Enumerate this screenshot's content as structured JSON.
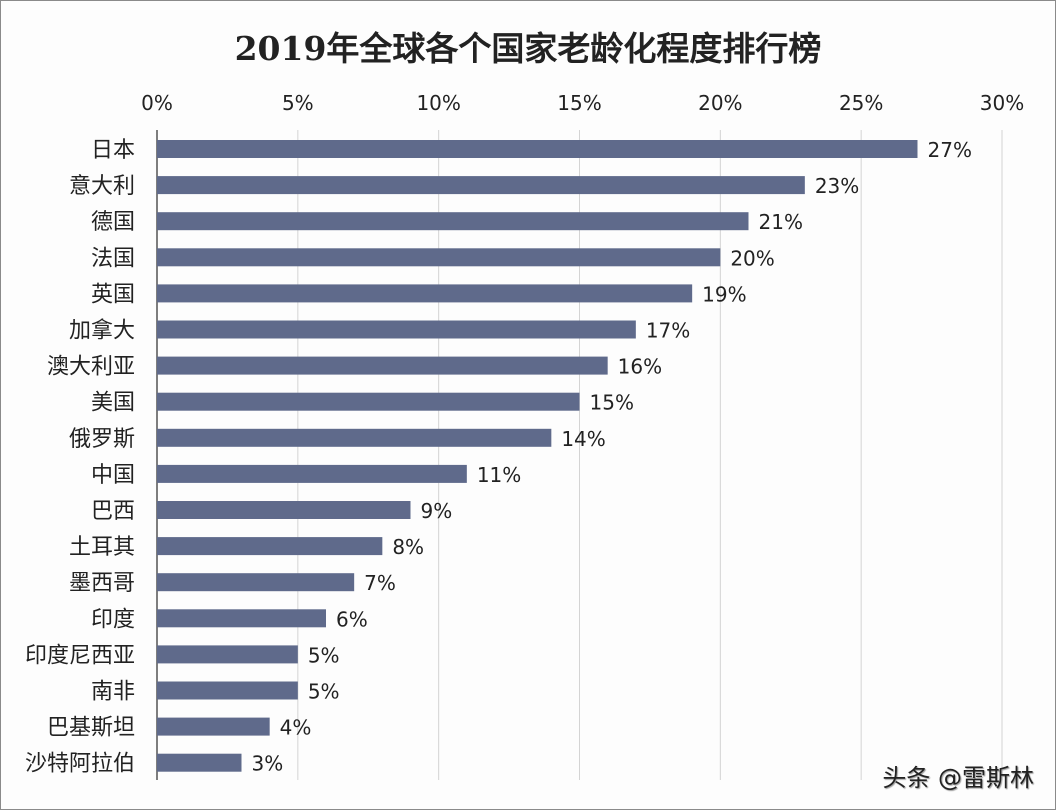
{
  "chart_data": {
    "type": "bar",
    "orientation": "horizontal",
    "title": "2019年全球各个国家老龄化程度排行榜",
    "categories": [
      "日本",
      "意大利",
      "德国",
      "法国",
      "英国",
      "加拿大",
      "澳大利亚",
      "美国",
      "俄罗斯",
      "中国",
      "巴西",
      "土耳其",
      "墨西哥",
      "印度",
      "印度尼西亚",
      "南非",
      "巴基斯坦",
      "沙特阿拉伯"
    ],
    "values": [
      27,
      23,
      21,
      20,
      19,
      17,
      16,
      15,
      14,
      11,
      9,
      8,
      7,
      6,
      5,
      5,
      4,
      3
    ],
    "data_labels": [
      "27%",
      "23%",
      "21%",
      "20%",
      "19%",
      "17%",
      "16%",
      "15%",
      "14%",
      "11%",
      "9%",
      "8%",
      "7%",
      "6%",
      "5%",
      "5%",
      "4%",
      "3%"
    ],
    "xlim": [
      0,
      30
    ],
    "xticks": [
      "0%",
      "5%",
      "10%",
      "15%",
      "20%",
      "25%",
      "30%"
    ],
    "xaxis_position": "top",
    "grid": true,
    "bar_color": "#5f6a8b",
    "xlabel": "",
    "ylabel": ""
  },
  "watermark": "头条 @雷斯林"
}
